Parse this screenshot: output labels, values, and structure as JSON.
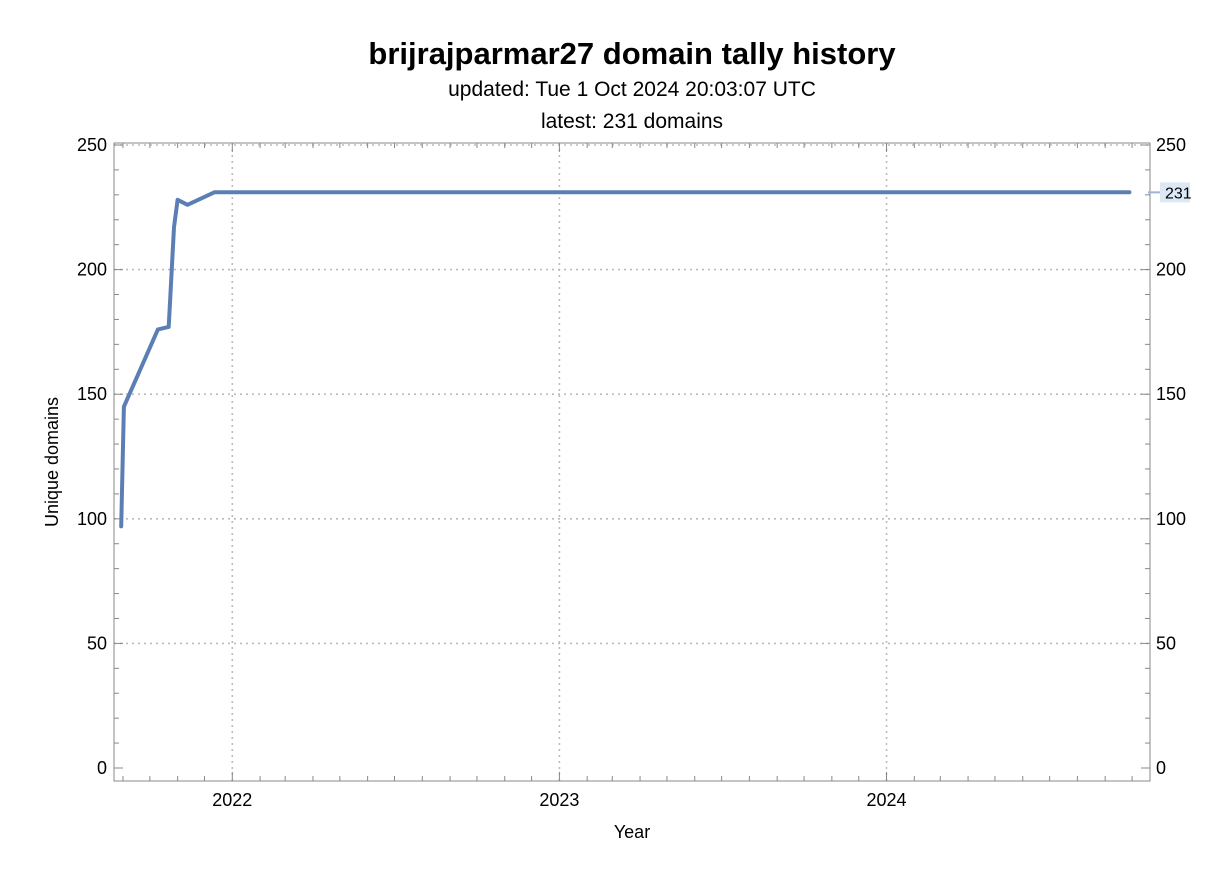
{
  "chart_data": {
    "type": "line",
    "title": "brijrajparmar27 domain tally history",
    "subtitle_lines": [
      "updated: Tue 1 Oct 2024 20:03:07 UTC",
      "latest: 231 domains"
    ],
    "xlabel": "Year",
    "ylabel": "Unique domains",
    "x_tick_labels": [
      "2022",
      "2023",
      "2024"
    ],
    "y_tick_labels": [
      "0",
      "50",
      "100",
      "150",
      "200",
      "250"
    ],
    "ylim": [
      0,
      250
    ],
    "xlim": [
      "2021-08-22",
      "2024-10-21"
    ],
    "grid": true,
    "series": [
      {
        "color": "#5b7fb5",
        "x": [
          "2021-08-30",
          "2021-09-02",
          "2021-10-10",
          "2021-10-22",
          "2021-10-28",
          "2021-11-01",
          "2021-11-12",
          "2021-12-12",
          "2024-09-28"
        ],
        "y": [
          97,
          145,
          176,
          177,
          217,
          228,
          226,
          231,
          231
        ]
      }
    ],
    "latest_label": "231",
    "latest_label_color": "#dce8f6"
  }
}
